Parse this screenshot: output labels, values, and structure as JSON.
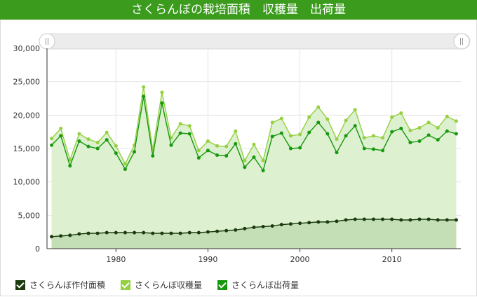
{
  "header": {
    "title": "さくらんぼの栽培面積　収穫量　出荷量"
  },
  "colors": {
    "title_bar": "#3a9b1c",
    "area": "#1b3a0f",
    "harvest": "#95d040",
    "shipment": "#17990e",
    "area_fill": "#c4dfb5",
    "harvest_fill": "#ddf0d0"
  },
  "legend": [
    {
      "name": "さくらんぼ作付面積",
      "color": "#1b3a0f"
    },
    {
      "name": "さくらんぼ収穫量",
      "color": "#95d040"
    },
    {
      "name": "さくらんぼ出荷量",
      "color": "#17990e"
    }
  ],
  "chart_data": {
    "type": "area",
    "title": "さくらんぼの栽培面積　収穫量　出荷量",
    "x": [
      1973,
      1974,
      1975,
      1976,
      1977,
      1978,
      1979,
      1980,
      1981,
      1982,
      1983,
      1984,
      1985,
      1986,
      1987,
      1988,
      1989,
      1990,
      1991,
      1992,
      1993,
      1994,
      1995,
      1996,
      1997,
      1998,
      1999,
      2000,
      2001,
      2002,
      2003,
      2004,
      2005,
      2006,
      2007,
      2008,
      2009,
      2010,
      2011,
      2012,
      2013,
      2014,
      2015,
      2016,
      2017
    ],
    "xticks": [
      "1980",
      "1990",
      "2000",
      "2010"
    ],
    "xtick_values": [
      1980,
      1990,
      2000,
      2010
    ],
    "yticks": [
      "0",
      "5,000",
      "10,000",
      "15,000",
      "20,000",
      "25,000",
      "30,000"
    ],
    "ylim": [
      0,
      30000
    ],
    "grid": true,
    "legend_position": "bottom-left",
    "series": [
      {
        "name": "さくらんぼ作付面積",
        "values": [
          1800,
          1900,
          2000,
          2200,
          2300,
          2300,
          2400,
          2400,
          2400,
          2400,
          2400,
          2300,
          2300,
          2300,
          2300,
          2400,
          2400,
          2500,
          2600,
          2700,
          2800,
          3000,
          3200,
          3300,
          3400,
          3600,
          3700,
          3800,
          3900,
          4000,
          4000,
          4100,
          4300,
          4400,
          4400,
          4400,
          4400,
          4400,
          4300,
          4300,
          4400,
          4400,
          4300,
          4300,
          4300
        ]
      },
      {
        "name": "さくらんぼ収穫量",
        "values": [
          16500,
          18000,
          13300,
          17200,
          16400,
          15900,
          17400,
          15400,
          12700,
          15500,
          24200,
          14800,
          23400,
          16600,
          18700,
          18400,
          14700,
          16100,
          15400,
          15300,
          17600,
          13200,
          15600,
          13200,
          18900,
          19500,
          16900,
          17100,
          19700,
          21200,
          19400,
          16400,
          19200,
          20800,
          16600,
          16900,
          16600,
          19700,
          20300,
          17700,
          18100,
          18900,
          18100,
          19800,
          19100
        ]
      },
      {
        "name": "さくらんぼ出荷量",
        "values": [
          15500,
          16900,
          12400,
          16100,
          15300,
          15000,
          16300,
          14300,
          11900,
          14500,
          22800,
          13900,
          21800,
          15500,
          17300,
          17200,
          13600,
          14700,
          14000,
          13900,
          15700,
          12200,
          13700,
          11700,
          16800,
          17300,
          15000,
          15100,
          17400,
          18900,
          17200,
          14400,
          16900,
          18400,
          15000,
          14900,
          14700,
          17500,
          18000,
          15900,
          16100,
          17000,
          16300,
          17600,
          17200
        ]
      }
    ]
  }
}
